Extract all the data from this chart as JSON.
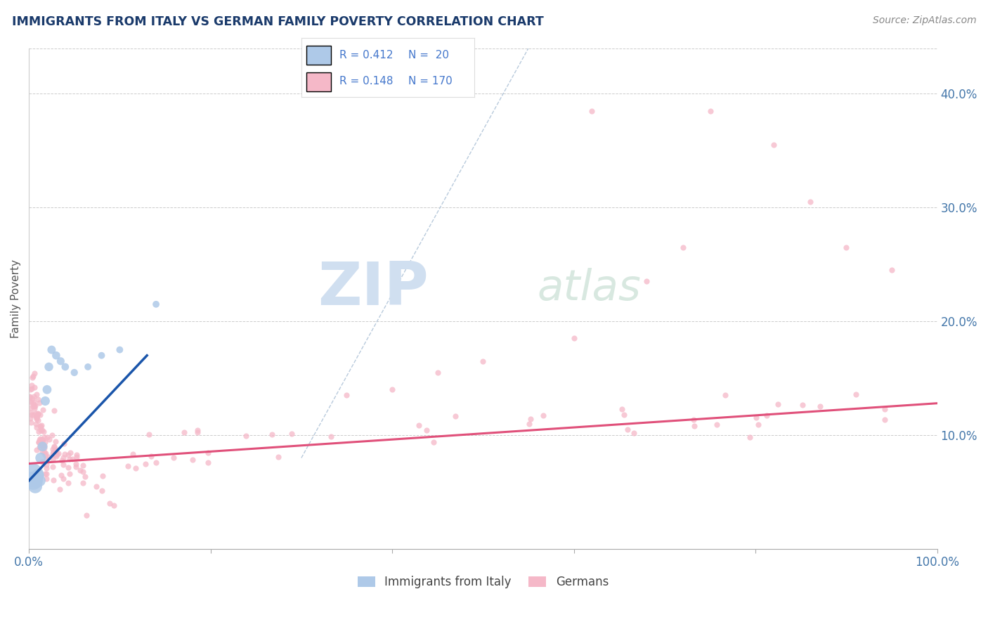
{
  "title": "IMMIGRANTS FROM ITALY VS GERMAN FAMILY POVERTY CORRELATION CHART",
  "source_text": "Source: ZipAtlas.com",
  "ylabel": "Family Poverty",
  "legend_label_blue": "Immigrants from Italy",
  "legend_label_pink": "Germans",
  "legend_r_blue": "R = 0.412",
  "legend_n_blue": "N =  20",
  "legend_r_pink": "R = 0.148",
  "legend_n_pink": "N = 170",
  "xlim": [
    0.0,
    1.0
  ],
  "ylim": [
    0.0,
    0.44
  ],
  "x_ticks": [
    0.0,
    0.2,
    0.4,
    0.6,
    0.8,
    1.0
  ],
  "x_tick_labels": [
    "0.0%",
    "",
    "",
    "",
    "",
    "100.0%"
  ],
  "y_ticks_right": [
    0.1,
    0.2,
    0.3,
    0.4
  ],
  "y_tick_labels_right": [
    "10.0%",
    "20.0%",
    "30.0%",
    "40.0%"
  ],
  "grid_color": "#cccccc",
  "background_color": "#ffffff",
  "title_color": "#1a3a6b",
  "source_color": "#888888",
  "blue_color": "#aec9e8",
  "blue_line_color": "#1a55aa",
  "pink_color": "#f5b8c8",
  "pink_line_color": "#e0507a",
  "watermark_zip_color": "#d0dff0",
  "watermark_atlas_color": "#d8e8e0",
  "blue_scatter_x": [
    0.003,
    0.005,
    0.007,
    0.008,
    0.01,
    0.012,
    0.013,
    0.015,
    0.018,
    0.02,
    0.022,
    0.025,
    0.03,
    0.035,
    0.04,
    0.05,
    0.065,
    0.08,
    0.1,
    0.14
  ],
  "blue_scatter_y": [
    0.065,
    0.06,
    0.055,
    0.06,
    0.065,
    0.06,
    0.08,
    0.09,
    0.13,
    0.14,
    0.16,
    0.175,
    0.17,
    0.165,
    0.16,
    0.155,
    0.16,
    0.17,
    0.175,
    0.215
  ],
  "blue_scatter_sizes": [
    600,
    350,
    200,
    180,
    160,
    140,
    120,
    100,
    90,
    85,
    80,
    75,
    70,
    65,
    60,
    55,
    50,
    50,
    50,
    50
  ],
  "pink_line_x": [
    0.0,
    1.0
  ],
  "pink_line_y": [
    0.075,
    0.128
  ],
  "blue_line_x": [
    0.0,
    0.13
  ],
  "blue_line_y": [
    0.06,
    0.17
  ],
  "ref_line_x": [
    0.3,
    0.55
  ],
  "ref_line_y": [
    0.08,
    0.44
  ]
}
